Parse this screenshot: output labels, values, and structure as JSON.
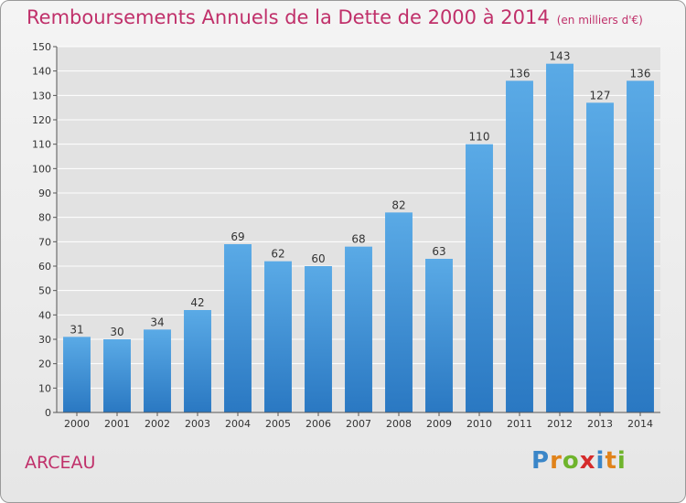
{
  "header": {
    "title": "Remboursements Annuels de la Dette de 2000 à 2014",
    "unit": "(en milliers d'€)"
  },
  "footer": {
    "commune": "ARCEAU",
    "logo": [
      "P",
      "r",
      "o",
      "x",
      "i",
      "t",
      "i"
    ]
  },
  "colors": {
    "title": "#c0306a",
    "bar": "#4d9fe0",
    "bar_dark": "#2a78c2",
    "grid": "#ffffff"
  },
  "chart_data": {
    "type": "bar",
    "title": "Remboursements Annuels de la Dette de 2000 à 2014",
    "subtitle": "(en milliers d'€)",
    "xlabel": "",
    "ylabel": "",
    "categories": [
      "2000",
      "2001",
      "2002",
      "2003",
      "2004",
      "2005",
      "2006",
      "2007",
      "2008",
      "2009",
      "2010",
      "2011",
      "2012",
      "2013",
      "2014"
    ],
    "values": [
      31,
      30,
      34,
      42,
      69,
      62,
      60,
      68,
      82,
      63,
      110,
      136,
      143,
      127,
      136
    ],
    "ylim": [
      0,
      150
    ],
    "yticks": [
      0,
      10,
      20,
      30,
      40,
      50,
      60,
      70,
      80,
      90,
      100,
      110,
      120,
      130,
      140,
      150
    ],
    "grid": true,
    "data_labels": true
  }
}
